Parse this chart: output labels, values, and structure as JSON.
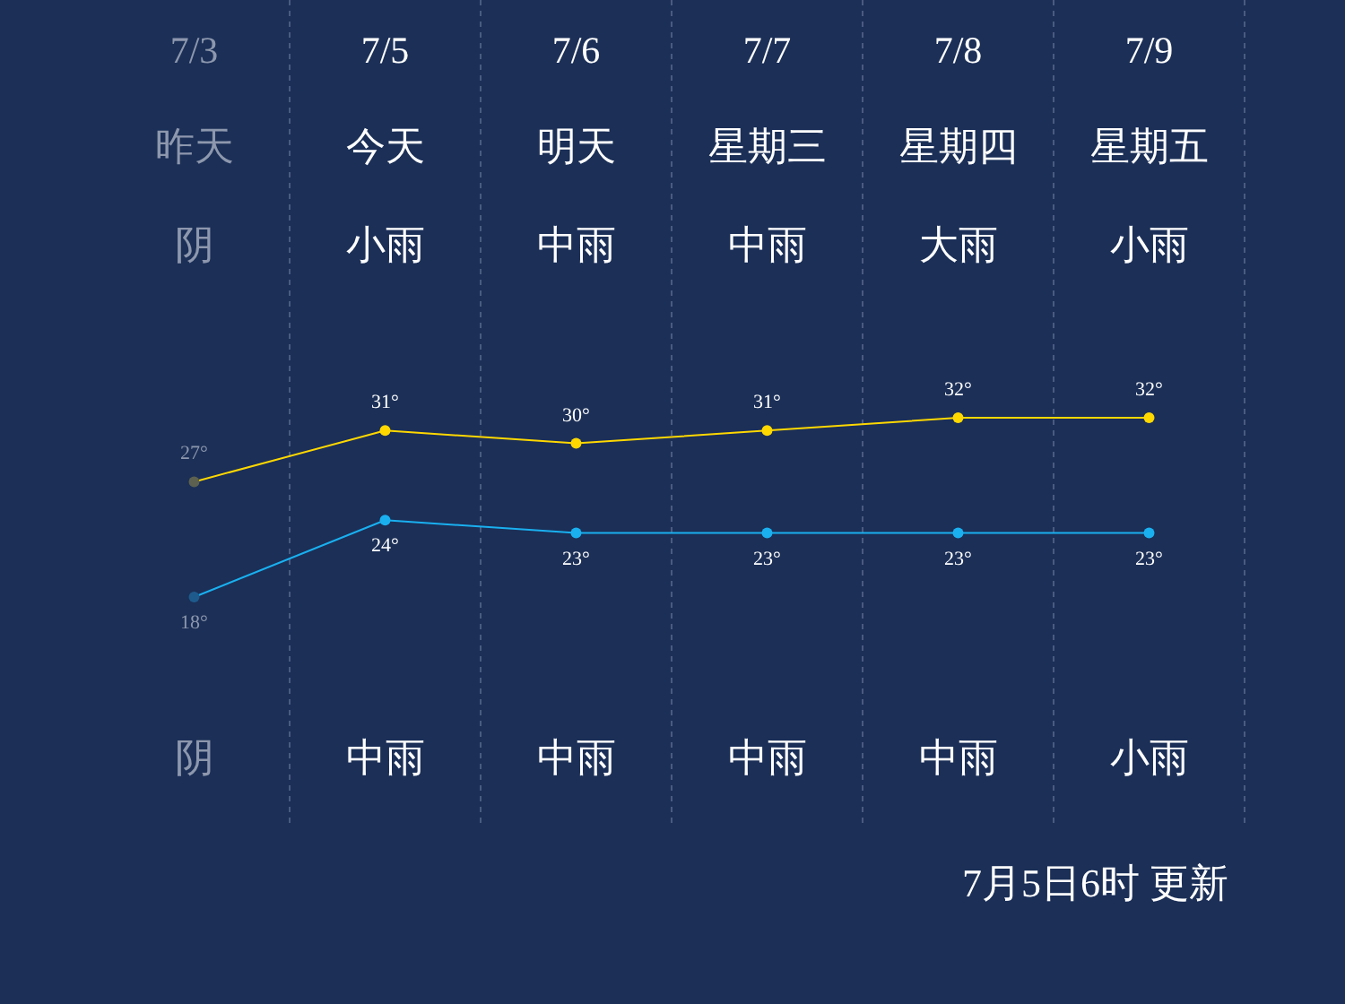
{
  "chart_data": {
    "type": "line",
    "categories": [
      "7/3",
      "7/5",
      "7/6",
      "7/7",
      "7/8",
      "7/9"
    ],
    "series": [
      {
        "color": "#ffd800",
        "colors": [
          "#5c6150",
          "#ffd800",
          "#ffd800",
          "#ffd800",
          "#ffd800",
          "#ffd800"
        ],
        "values": [
          27,
          31,
          30,
          31,
          32,
          32
        ],
        "value_labels": [
          "27°",
          "31°",
          "30°",
          "31°",
          "32°",
          "32°"
        ]
      },
      {
        "color": "#1ab0f0",
        "colors": [
          "#1f5a8c",
          "#1ab0f0",
          "#1ab0f0",
          "#1ab0f0",
          "#1ab0f0",
          "#1ab0f0"
        ],
        "values": [
          18,
          24,
          23,
          23,
          23,
          23
        ],
        "value_labels": [
          "18°",
          "24°",
          "23°",
          "23°",
          "23°",
          "23°"
        ]
      }
    ],
    "annotations": [
      "昨天",
      "今天",
      "明天",
      "星期三",
      "星期四",
      "星期五",
      "阴",
      "小雨",
      "中雨",
      "中雨",
      "大雨",
      "小雨",
      "阴",
      "中雨",
      "中雨",
      "中雨",
      "中雨",
      "小雨",
      "7月5日6时 更新"
    ],
    "grid": "x",
    "marker": "circle",
    "line_style": "solid"
  }
}
